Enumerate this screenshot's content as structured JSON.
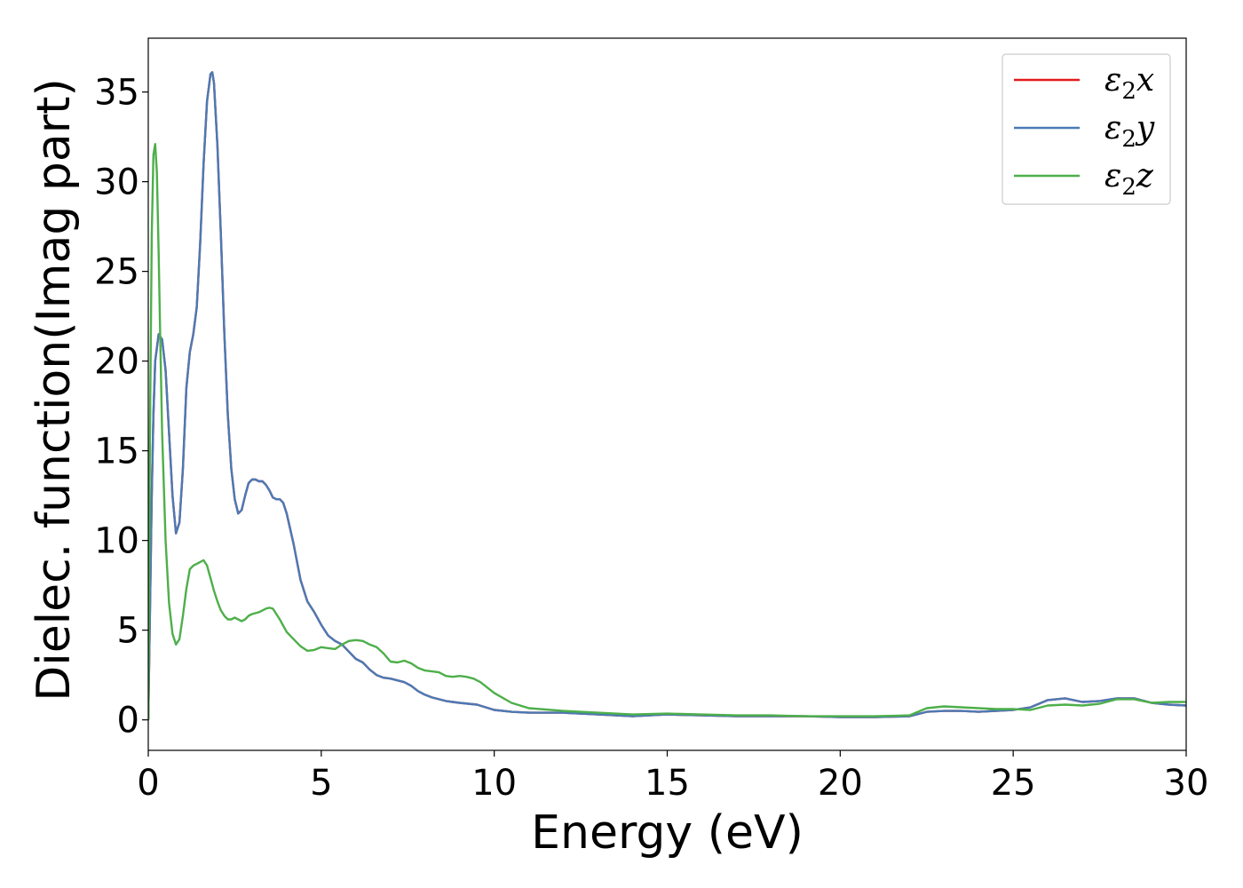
{
  "chart_data": {
    "type": "line",
    "title": "",
    "xlabel": "Energy (eV)",
    "ylabel": "Dielec. function(Imag part)",
    "xlim": [
      0,
      30
    ],
    "ylim": [
      -1.7,
      38
    ],
    "xticks": [
      0,
      5,
      10,
      15,
      20,
      25,
      30
    ],
    "xtick_labels": [
      "0",
      "5",
      "10",
      "15",
      "20",
      "25",
      "30"
    ],
    "yticks": [
      0,
      5,
      10,
      15,
      20,
      25,
      30,
      35
    ],
    "ytick_labels": [
      "0",
      "5",
      "10",
      "15",
      "20",
      "25",
      "30",
      "35"
    ],
    "grid": false,
    "legend_position": "top-right",
    "series": [
      {
        "name": "ε2x",
        "symbol": "ε",
        "subscript": "2",
        "axis": "x",
        "color": "#e41a1c",
        "points": [
          [
            0,
            0
          ],
          [
            0.05,
            6
          ],
          [
            0.1,
            12.5
          ],
          [
            0.15,
            17
          ],
          [
            0.2,
            20
          ],
          [
            0.3,
            21.5
          ],
          [
            0.4,
            21.2
          ],
          [
            0.5,
            19.5
          ],
          [
            0.6,
            16
          ],
          [
            0.7,
            12.5
          ],
          [
            0.8,
            10.4
          ],
          [
            0.9,
            11
          ],
          [
            1.0,
            14
          ],
          [
            1.1,
            18.5
          ],
          [
            1.2,
            20.5
          ],
          [
            1.3,
            21.5
          ],
          [
            1.4,
            23
          ],
          [
            1.5,
            26.5
          ],
          [
            1.6,
            31
          ],
          [
            1.7,
            34.5
          ],
          [
            1.8,
            36
          ],
          [
            1.85,
            36.1
          ],
          [
            1.9,
            35.5
          ],
          [
            2.0,
            32
          ],
          [
            2.1,
            27
          ],
          [
            2.2,
            21.5
          ],
          [
            2.3,
            17
          ],
          [
            2.4,
            14
          ],
          [
            2.5,
            12.3
          ],
          [
            2.6,
            11.5
          ],
          [
            2.7,
            11.7
          ],
          [
            2.8,
            12.5
          ],
          [
            2.9,
            13.2
          ],
          [
            3.0,
            13.4
          ],
          [
            3.1,
            13.4
          ],
          [
            3.2,
            13.3
          ],
          [
            3.3,
            13.3
          ],
          [
            3.4,
            13.1
          ],
          [
            3.5,
            12.8
          ],
          [
            3.6,
            12.4
          ],
          [
            3.7,
            12.3
          ],
          [
            3.8,
            12.3
          ],
          [
            3.9,
            12.1
          ],
          [
            4.0,
            11.5
          ],
          [
            4.2,
            9.8
          ],
          [
            4.4,
            7.8
          ],
          [
            4.6,
            6.6
          ],
          [
            4.8,
            6.0
          ],
          [
            5.0,
            5.3
          ],
          [
            5.2,
            4.7
          ],
          [
            5.4,
            4.4
          ],
          [
            5.6,
            4.2
          ],
          [
            5.8,
            3.8
          ],
          [
            6.0,
            3.4
          ],
          [
            6.2,
            3.2
          ],
          [
            6.4,
            2.8
          ],
          [
            6.6,
            2.5
          ],
          [
            6.8,
            2.35
          ],
          [
            7.0,
            2.3
          ],
          [
            7.2,
            2.2
          ],
          [
            7.4,
            2.1
          ],
          [
            7.6,
            1.9
          ],
          [
            7.8,
            1.6
          ],
          [
            8.0,
            1.4
          ],
          [
            8.2,
            1.25
          ],
          [
            8.4,
            1.15
          ],
          [
            8.6,
            1.05
          ],
          [
            8.8,
            1.0
          ],
          [
            9.0,
            0.95
          ],
          [
            9.5,
            0.85
          ],
          [
            10.0,
            0.55
          ],
          [
            10.5,
            0.45
          ],
          [
            11.0,
            0.4
          ],
          [
            12.0,
            0.4
          ],
          [
            13.0,
            0.3
          ],
          [
            14.0,
            0.2
          ],
          [
            15.0,
            0.3
          ],
          [
            16.0,
            0.25
          ],
          [
            17.0,
            0.2
          ],
          [
            18.0,
            0.2
          ],
          [
            19.0,
            0.2
          ],
          [
            20.0,
            0.15
          ],
          [
            21.0,
            0.15
          ],
          [
            22.0,
            0.2
          ],
          [
            22.5,
            0.45
          ],
          [
            23.0,
            0.5
          ],
          [
            23.5,
            0.5
          ],
          [
            24.0,
            0.45
          ],
          [
            24.5,
            0.5
          ],
          [
            25.0,
            0.55
          ],
          [
            25.5,
            0.7
          ],
          [
            26.0,
            1.1
          ],
          [
            26.5,
            1.2
          ],
          [
            27.0,
            1.0
          ],
          [
            27.5,
            1.05
          ],
          [
            28.0,
            1.2
          ],
          [
            28.5,
            1.2
          ],
          [
            29.0,
            0.95
          ],
          [
            29.5,
            0.85
          ],
          [
            30.0,
            0.8
          ]
        ]
      },
      {
        "name": "ε2y",
        "symbol": "ε",
        "subscript": "2",
        "axis": "y",
        "color": "#4a7ab5",
        "points": [
          [
            0,
            0
          ],
          [
            0.05,
            6
          ],
          [
            0.1,
            12.5
          ],
          [
            0.15,
            17
          ],
          [
            0.2,
            20
          ],
          [
            0.3,
            21.5
          ],
          [
            0.4,
            21.2
          ],
          [
            0.5,
            19.5
          ],
          [
            0.6,
            16
          ],
          [
            0.7,
            12.5
          ],
          [
            0.8,
            10.4
          ],
          [
            0.9,
            11
          ],
          [
            1.0,
            14
          ],
          [
            1.1,
            18.5
          ],
          [
            1.2,
            20.5
          ],
          [
            1.3,
            21.5
          ],
          [
            1.4,
            23
          ],
          [
            1.5,
            26.5
          ],
          [
            1.6,
            31
          ],
          [
            1.7,
            34.5
          ],
          [
            1.8,
            36
          ],
          [
            1.85,
            36.1
          ],
          [
            1.9,
            35.5
          ],
          [
            2.0,
            32
          ],
          [
            2.1,
            27
          ],
          [
            2.2,
            21.5
          ],
          [
            2.3,
            17
          ],
          [
            2.4,
            14
          ],
          [
            2.5,
            12.3
          ],
          [
            2.6,
            11.5
          ],
          [
            2.7,
            11.7
          ],
          [
            2.8,
            12.5
          ],
          [
            2.9,
            13.2
          ],
          [
            3.0,
            13.4
          ],
          [
            3.1,
            13.4
          ],
          [
            3.2,
            13.3
          ],
          [
            3.3,
            13.3
          ],
          [
            3.4,
            13.1
          ],
          [
            3.5,
            12.8
          ],
          [
            3.6,
            12.4
          ],
          [
            3.7,
            12.3
          ],
          [
            3.8,
            12.3
          ],
          [
            3.9,
            12.1
          ],
          [
            4.0,
            11.5
          ],
          [
            4.2,
            9.8
          ],
          [
            4.4,
            7.8
          ],
          [
            4.6,
            6.6
          ],
          [
            4.8,
            6.0
          ],
          [
            5.0,
            5.3
          ],
          [
            5.2,
            4.7
          ],
          [
            5.4,
            4.4
          ],
          [
            5.6,
            4.2
          ],
          [
            5.8,
            3.8
          ],
          [
            6.0,
            3.4
          ],
          [
            6.2,
            3.2
          ],
          [
            6.4,
            2.8
          ],
          [
            6.6,
            2.5
          ],
          [
            6.8,
            2.35
          ],
          [
            7.0,
            2.3
          ],
          [
            7.2,
            2.2
          ],
          [
            7.4,
            2.1
          ],
          [
            7.6,
            1.9
          ],
          [
            7.8,
            1.6
          ],
          [
            8.0,
            1.4
          ],
          [
            8.2,
            1.25
          ],
          [
            8.4,
            1.15
          ],
          [
            8.6,
            1.05
          ],
          [
            8.8,
            1.0
          ],
          [
            9.0,
            0.95
          ],
          [
            9.5,
            0.85
          ],
          [
            10.0,
            0.55
          ],
          [
            10.5,
            0.45
          ],
          [
            11.0,
            0.4
          ],
          [
            12.0,
            0.4
          ],
          [
            13.0,
            0.3
          ],
          [
            14.0,
            0.2
          ],
          [
            15.0,
            0.3
          ],
          [
            16.0,
            0.25
          ],
          [
            17.0,
            0.2
          ],
          [
            18.0,
            0.2
          ],
          [
            19.0,
            0.2
          ],
          [
            20.0,
            0.15
          ],
          [
            21.0,
            0.15
          ],
          [
            22.0,
            0.2
          ],
          [
            22.5,
            0.45
          ],
          [
            23.0,
            0.5
          ],
          [
            23.5,
            0.5
          ],
          [
            24.0,
            0.45
          ],
          [
            24.5,
            0.5
          ],
          [
            25.0,
            0.55
          ],
          [
            25.5,
            0.7
          ],
          [
            26.0,
            1.1
          ],
          [
            26.5,
            1.2
          ],
          [
            27.0,
            1.0
          ],
          [
            27.5,
            1.05
          ],
          [
            28.0,
            1.2
          ],
          [
            28.5,
            1.2
          ],
          [
            29.0,
            0.95
          ],
          [
            29.5,
            0.85
          ],
          [
            30.0,
            0.8
          ]
        ]
      },
      {
        "name": "ε2z",
        "symbol": "ε",
        "subscript": "2",
        "axis": "z",
        "color": "#4daf4a",
        "points": [
          [
            0,
            0
          ],
          [
            0.05,
            16
          ],
          [
            0.1,
            27
          ],
          [
            0.15,
            31.5
          ],
          [
            0.2,
            32.1
          ],
          [
            0.25,
            30.5
          ],
          [
            0.3,
            26
          ],
          [
            0.35,
            21
          ],
          [
            0.4,
            16
          ],
          [
            0.5,
            10
          ],
          [
            0.6,
            6.5
          ],
          [
            0.7,
            4.8
          ],
          [
            0.8,
            4.2
          ],
          [
            0.9,
            4.5
          ],
          [
            1.0,
            5.8
          ],
          [
            1.1,
            7.3
          ],
          [
            1.2,
            8.4
          ],
          [
            1.3,
            8.6
          ],
          [
            1.4,
            8.7
          ],
          [
            1.5,
            8.8
          ],
          [
            1.6,
            8.9
          ],
          [
            1.7,
            8.6
          ],
          [
            1.8,
            7.9
          ],
          [
            1.9,
            7.2
          ],
          [
            2.0,
            6.6
          ],
          [
            2.1,
            6.1
          ],
          [
            2.2,
            5.8
          ],
          [
            2.3,
            5.6
          ],
          [
            2.4,
            5.6
          ],
          [
            2.5,
            5.7
          ],
          [
            2.6,
            5.6
          ],
          [
            2.7,
            5.5
          ],
          [
            2.8,
            5.6
          ],
          [
            2.9,
            5.8
          ],
          [
            3.0,
            5.9
          ],
          [
            3.2,
            6.0
          ],
          [
            3.4,
            6.2
          ],
          [
            3.5,
            6.25
          ],
          [
            3.6,
            6.2
          ],
          [
            3.8,
            5.6
          ],
          [
            4.0,
            4.9
          ],
          [
            4.2,
            4.5
          ],
          [
            4.4,
            4.1
          ],
          [
            4.6,
            3.85
          ],
          [
            4.8,
            3.9
          ],
          [
            5.0,
            4.05
          ],
          [
            5.2,
            4.0
          ],
          [
            5.4,
            3.95
          ],
          [
            5.6,
            4.2
          ],
          [
            5.8,
            4.4
          ],
          [
            6.0,
            4.45
          ],
          [
            6.2,
            4.4
          ],
          [
            6.4,
            4.2
          ],
          [
            6.6,
            4.05
          ],
          [
            6.8,
            3.7
          ],
          [
            7.0,
            3.25
          ],
          [
            7.2,
            3.2
          ],
          [
            7.4,
            3.3
          ],
          [
            7.6,
            3.15
          ],
          [
            7.8,
            2.9
          ],
          [
            8.0,
            2.75
          ],
          [
            8.2,
            2.7
          ],
          [
            8.4,
            2.65
          ],
          [
            8.6,
            2.45
          ],
          [
            8.8,
            2.4
          ],
          [
            9.0,
            2.45
          ],
          [
            9.2,
            2.4
          ],
          [
            9.4,
            2.3
          ],
          [
            9.6,
            2.1
          ],
          [
            9.8,
            1.8
          ],
          [
            10.0,
            1.5
          ],
          [
            10.5,
            0.95
          ],
          [
            11.0,
            0.65
          ],
          [
            12.0,
            0.5
          ],
          [
            13.0,
            0.4
          ],
          [
            14.0,
            0.3
          ],
          [
            15.0,
            0.35
          ],
          [
            16.0,
            0.3
          ],
          [
            17.0,
            0.25
          ],
          [
            18.0,
            0.25
          ],
          [
            19.0,
            0.2
          ],
          [
            20.0,
            0.2
          ],
          [
            21.0,
            0.2
          ],
          [
            22.0,
            0.25
          ],
          [
            22.5,
            0.65
          ],
          [
            23.0,
            0.75
          ],
          [
            23.5,
            0.7
          ],
          [
            24.0,
            0.65
          ],
          [
            24.5,
            0.6
          ],
          [
            25.0,
            0.6
          ],
          [
            25.5,
            0.55
          ],
          [
            26.0,
            0.8
          ],
          [
            26.5,
            0.85
          ],
          [
            27.0,
            0.8
          ],
          [
            27.5,
            0.9
          ],
          [
            28.0,
            1.15
          ],
          [
            28.5,
            1.15
          ],
          [
            29.0,
            0.95
          ],
          [
            29.5,
            1.0
          ],
          [
            30.0,
            1.0
          ]
        ]
      }
    ]
  }
}
